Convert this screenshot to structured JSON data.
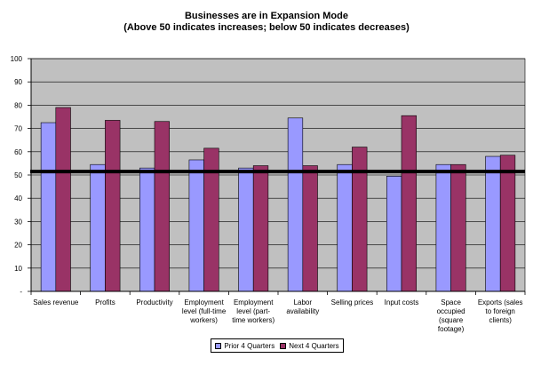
{
  "chart_data": {
    "type": "bar",
    "title": "Businesses are in Expansion Mode",
    "subtitle": "(Above 50 indicates increases; below 50 indicates decreases)",
    "categories": [
      [
        "Sales revenue"
      ],
      [
        "Profits"
      ],
      [
        "Productivity"
      ],
      [
        "Employment",
        "level (full-time",
        "workers)"
      ],
      [
        "Employment",
        "level (part-",
        "time workers)"
      ],
      [
        "Labor",
        "availability"
      ],
      [
        "Selling prices"
      ],
      [
        "Input costs"
      ],
      [
        "Space",
        "occupied",
        "(square",
        "footage)"
      ],
      [
        "Exports (sales",
        "to foreign",
        "clients)"
      ]
    ],
    "series": [
      {
        "name": "Prior 4 Quarters",
        "color": "#9999ff",
        "values": [
          72.5,
          54.5,
          53,
          56.5,
          53,
          74.5,
          54.5,
          49.5,
          54.5,
          58
        ]
      },
      {
        "name": "Next 4 Quarters",
        "color": "#993366",
        "values": [
          79,
          73.5,
          73,
          61.5,
          54,
          54,
          62,
          75.5,
          54.5,
          58.5
        ]
      }
    ],
    "reference_line": 51.5,
    "ylim": [
      0,
      100
    ],
    "yticks": [
      "-",
      "10",
      "20",
      "30",
      "40",
      "50",
      "60",
      "70",
      "80",
      "90",
      "100"
    ],
    "grid": true,
    "plot_background": "#c0c0c0",
    "legend_position": "bottom"
  }
}
